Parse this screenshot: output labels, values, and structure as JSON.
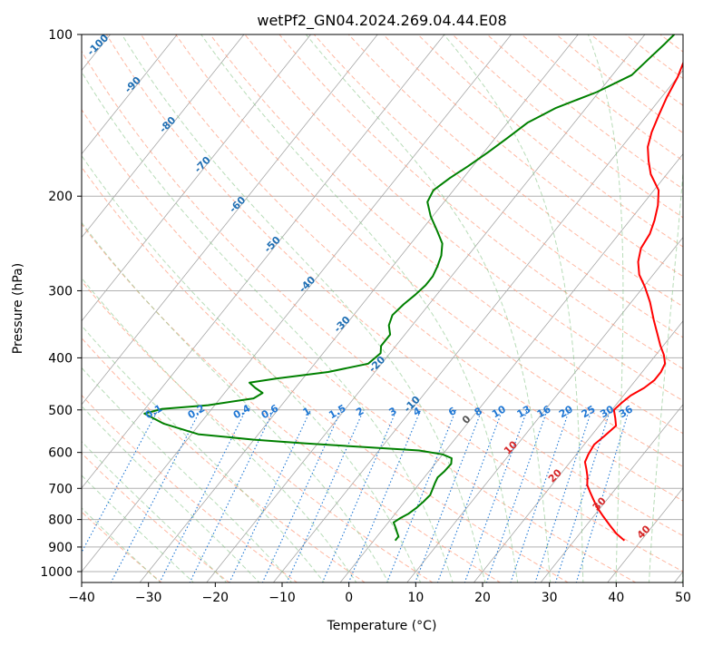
{
  "chart_data": {
    "type": "line",
    "subtype": "skew-T log-P diagram",
    "title": "wetPf2_GN04.2024.269.04.44.E08",
    "xlabel": "Temperature (°C)",
    "ylabel": "Pressure (hPa)",
    "xlim": [
      -40,
      50
    ],
    "ylim": [
      1050,
      100
    ],
    "y_scale": "log",
    "grid": true,
    "x_ticks": [
      "−40",
      "−30",
      "−20",
      "−10",
      "0",
      "10",
      "20",
      "30",
      "40",
      "50"
    ],
    "y_ticks": [
      "100",
      "200",
      "300",
      "400",
      "500",
      "600",
      "700",
      "800",
      "900",
      "1000"
    ],
    "series": [
      {
        "role": "temperature",
        "color": "#ff0000",
        "points": [
          [
            37.5,
            875
          ],
          [
            35.5,
            850
          ],
          [
            33.5,
            820
          ],
          [
            31.5,
            790
          ],
          [
            29.5,
            760
          ],
          [
            28.0,
            735
          ],
          [
            26.5,
            710
          ],
          [
            25.3,
            690
          ],
          [
            24.3,
            665
          ],
          [
            23.3,
            645
          ],
          [
            22.2,
            625
          ],
          [
            21.8,
            605
          ],
          [
            21.5,
            580
          ],
          [
            22.0,
            560
          ],
          [
            22.5,
            535
          ],
          [
            21.5,
            518
          ],
          [
            20.3,
            500
          ],
          [
            20.6,
            485
          ],
          [
            21.1,
            470
          ],
          [
            22.2,
            455
          ],
          [
            22.8,
            440
          ],
          [
            22.8,
            425
          ],
          [
            22.4,
            410
          ],
          [
            21.2,
            395
          ],
          [
            19.6,
            380
          ],
          [
            17.6,
            360
          ],
          [
            15.5,
            340
          ],
          [
            12.8,
            315
          ],
          [
            10.2,
            295
          ],
          [
            7.9,
            280
          ],
          [
            6.2,
            265
          ],
          [
            5.0,
            250
          ],
          [
            4.6,
            235
          ],
          [
            3.7,
            222
          ],
          [
            2.4,
            208
          ],
          [
            0.7,
            195
          ],
          [
            -2.4,
            182
          ],
          [
            -4.3,
            172
          ],
          [
            -6.1,
            162
          ],
          [
            -7.3,
            152
          ],
          [
            -8.2,
            142
          ],
          [
            -9.2,
            131
          ],
          [
            -10.0,
            120
          ],
          [
            -11.5,
            108
          ],
          [
            -12.9,
            100
          ]
        ]
      },
      {
        "role": "dewpoint",
        "color": "#008000",
        "points": [
          [
            3.2,
            875
          ],
          [
            3.2,
            860
          ],
          [
            2.5,
            845
          ],
          [
            1.8,
            830
          ],
          [
            0.8,
            810
          ],
          [
            1.3,
            795
          ],
          [
            2.0,
            780
          ],
          [
            2.5,
            760
          ],
          [
            2.8,
            740
          ],
          [
            3.0,
            720
          ],
          [
            2.6,
            700
          ],
          [
            2.3,
            685
          ],
          [
            2.0,
            668
          ],
          [
            2.3,
            650
          ],
          [
            2.4,
            630
          ],
          [
            1.8,
            615
          ],
          [
            0.0,
            605
          ],
          [
            -4.0,
            595
          ],
          [
            -12.0,
            587
          ],
          [
            -22.0,
            577
          ],
          [
            -30.0,
            568
          ],
          [
            -39.0,
            555
          ],
          [
            -45.5,
            530
          ],
          [
            -49.5,
            508
          ],
          [
            -47.5,
            498
          ],
          [
            -41.0,
            490
          ],
          [
            -35.0,
            476
          ],
          [
            -34.3,
            465
          ],
          [
            -36.0,
            455
          ],
          [
            -37.5,
            445
          ],
          [
            -34.0,
            437
          ],
          [
            -27.0,
            425
          ],
          [
            -22.0,
            410
          ],
          [
            -21.4,
            392
          ],
          [
            -22.2,
            380
          ],
          [
            -22.2,
            362
          ],
          [
            -23.5,
            348
          ],
          [
            -24.2,
            333
          ],
          [
            -23.8,
            318
          ],
          [
            -23.2,
            305
          ],
          [
            -22.8,
            293
          ],
          [
            -22.8,
            282
          ],
          [
            -23.3,
            270
          ],
          [
            -24.0,
            258
          ],
          [
            -25.3,
            245
          ],
          [
            -27.6,
            232
          ],
          [
            -30.3,
            218
          ],
          [
            -32.5,
            205
          ],
          [
            -33.0,
            195
          ],
          [
            -32.0,
            185
          ],
          [
            -30.7,
            176
          ],
          [
            -29.4,
            166
          ],
          [
            -28.2,
            156
          ],
          [
            -27.0,
            146
          ],
          [
            -24.5,
            137
          ],
          [
            -20.3,
            128
          ],
          [
            -17.1,
            119
          ],
          [
            -16.5,
            111
          ],
          [
            -15.9,
            104
          ],
          [
            -15.6,
            100
          ]
        ]
      }
    ],
    "isotherm_labels": [
      {
        "text": "-100",
        "T": -100
      },
      {
        "text": "-90",
        "T": -90
      },
      {
        "text": "-80",
        "T": -80
      },
      {
        "text": "-70",
        "T": -70
      },
      {
        "text": "-60",
        "T": -60
      },
      {
        "text": "-50",
        "T": -50
      },
      {
        "text": "-40",
        "T": -40
      },
      {
        "text": "-30",
        "T": -30
      },
      {
        "text": "-20",
        "T": -20
      },
      {
        "text": "-10",
        "T": -10
      },
      {
        "text": "0",
        "T": 0
      },
      {
        "text": "10",
        "T": 10
      },
      {
        "text": "20",
        "T": 20
      },
      {
        "text": "30",
        "T": 30
      },
      {
        "text": "40",
        "T": 40
      }
    ],
    "mixing_ratio_labels": [
      "0.1",
      "0.2",
      "0.4",
      "0.6",
      "1",
      "1.5",
      "2",
      "3",
      "4",
      "6",
      "8",
      "10",
      "13",
      "16",
      "20",
      "25",
      "30",
      "36"
    ],
    "mixing_ratio_values": [
      0.1,
      0.2,
      0.4,
      0.6,
      1,
      1.5,
      2,
      3,
      4,
      6,
      8,
      10,
      13,
      16,
      20,
      25,
      30,
      36
    ],
    "colors": {
      "temperature": "#ff0000",
      "dewpoint": "#008000",
      "isotherm": "#808080",
      "dry_adiabat": "#ff9a7a",
      "moist_adiabat": "#88c488",
      "mixing_ratio": "#1f77d4",
      "isotherm_label_cold": "#1f6fb4",
      "isotherm_label_warm": "#d62728",
      "isotherm_label_zero": "#555555"
    }
  }
}
